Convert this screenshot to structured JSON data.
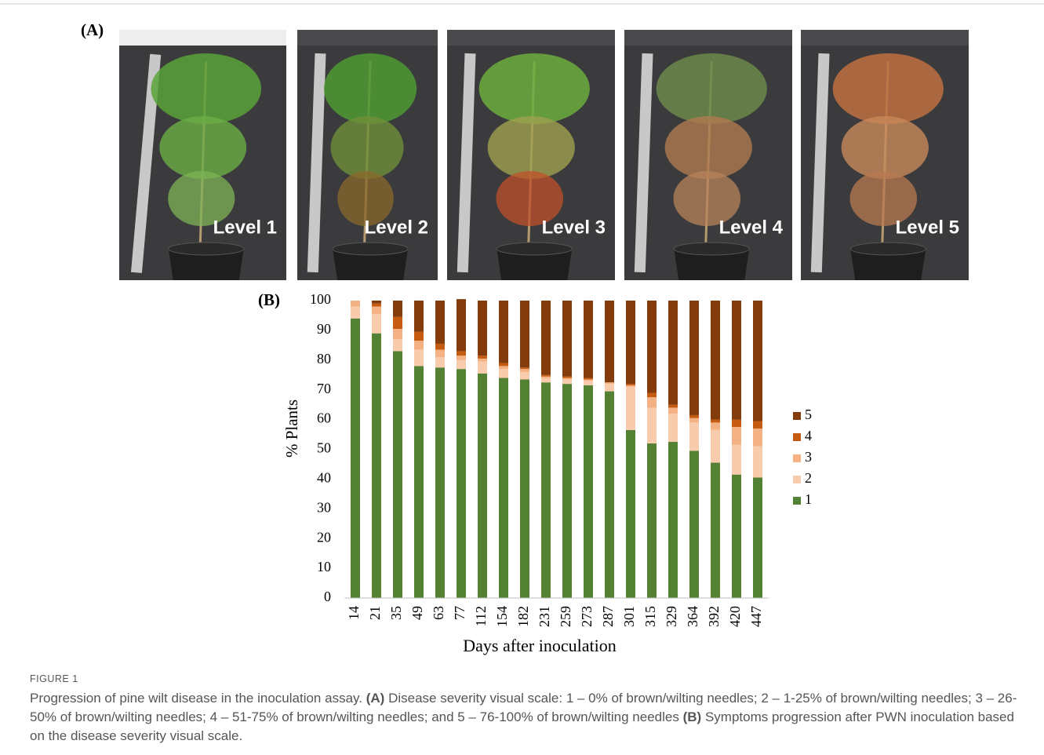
{
  "panel_a": {
    "label": "(A)",
    "images": [
      {
        "label": "Level 1"
      },
      {
        "label": "Level 2"
      },
      {
        "label": "Level 3"
      },
      {
        "label": "Level 4"
      },
      {
        "label": "Level 5"
      }
    ]
  },
  "chart_data": {
    "type": "stacked-bar",
    "panel_label": "(B)",
    "x_label": "Days after inoculation",
    "y_label": "% Plants",
    "categories": [
      "14",
      "21",
      "35",
      "49",
      "63",
      "77",
      "112",
      "154",
      "182",
      "231",
      "259",
      "273",
      "287",
      "301",
      "315",
      "329",
      "364",
      "392",
      "420",
      "447"
    ],
    "series": [
      {
        "name": "1",
        "color": "#548235",
        "values": [
          94,
          89,
          83,
          78,
          77.5,
          77,
          75.5,
          74,
          73.5,
          72.5,
          72,
          71.5,
          69.5,
          56.5,
          52,
          52.5,
          49.5,
          45.5,
          41.5,
          40.5
        ]
      },
      {
        "name": "2",
        "color": "#f8cbad",
        "values": [
          4,
          6.5,
          4,
          5.5,
          3.5,
          3,
          4,
          3,
          2.5,
          1.5,
          1.5,
          1.5,
          2.5,
          14.5,
          12,
          9.5,
          9.5,
          11,
          10,
          10.5
        ]
      },
      {
        "name": "3",
        "color": "#f4b183",
        "values": [
          2,
          2.5,
          3.5,
          3,
          2.5,
          1.5,
          1,
          1,
          1,
          0.5,
          0.5,
          0.5,
          0.5,
          0.5,
          3.5,
          2,
          1.5,
          2.5,
          6,
          6
        ]
      },
      {
        "name": "4",
        "color": "#c55a11",
        "values": [
          0,
          1,
          4,
          3,
          2,
          1.5,
          1,
          1,
          0.5,
          0.5,
          0.5,
          0.5,
          0,
          0.5,
          1.5,
          1,
          1,
          1,
          2.5,
          2.5
        ]
      },
      {
        "name": "5",
        "color": "#843c0c",
        "values": [
          0,
          1,
          5.5,
          10.5,
          14.5,
          17.5,
          18.5,
          21,
          22.5,
          25,
          25.5,
          26,
          27.5,
          28,
          31,
          35,
          38.5,
          40,
          40,
          40.5
        ]
      }
    ],
    "ylim": [
      0,
      100
    ],
    "yticks": [
      0,
      10,
      20,
      30,
      40,
      50,
      60,
      70,
      80,
      90,
      100
    ],
    "grid": false,
    "legend": "right"
  },
  "caption": {
    "label": "FIGURE 1",
    "intro": "Progression of pine wilt disease in the inoculation assay.",
    "a_label": "(A)",
    "a_text": "Disease severity visual scale: 1 – 0% of brown/wilting needles; 2 – 1-25% of brown/wilting needles; 3 – 26-50% of brown/wilting needles; 4 – 51-75% of brown/wilting needles; and 5 – 76-100% of brown/wilting needles",
    "b_label": "(B)",
    "b_text": "Symptoms progression after PWN inoculation based on the disease severity visual scale."
  }
}
